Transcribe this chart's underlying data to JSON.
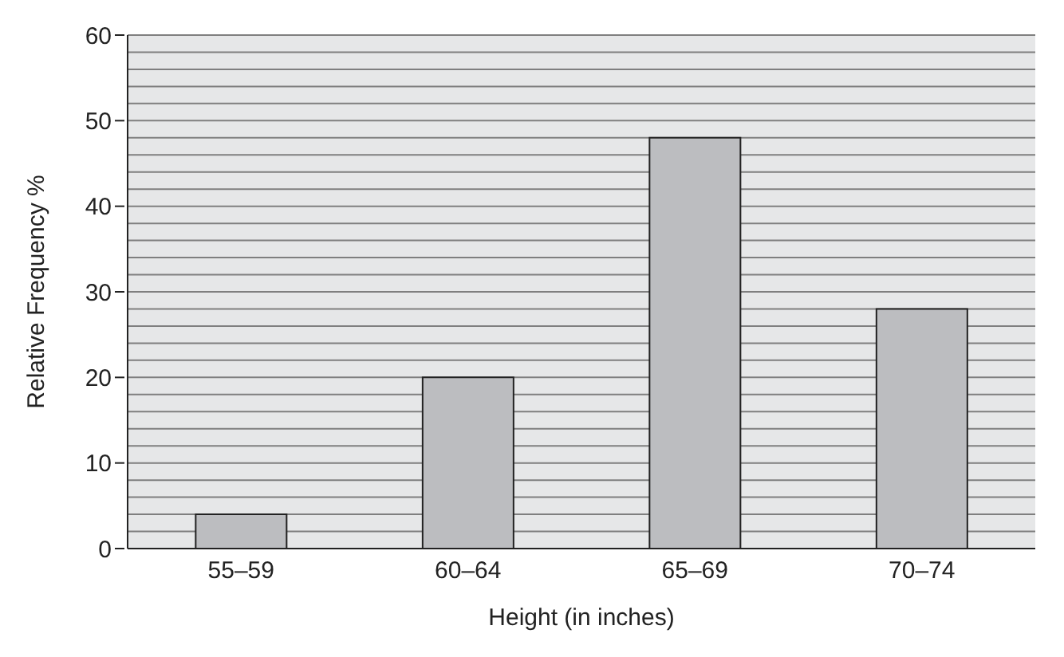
{
  "chart_data": {
    "type": "bar",
    "xlabel": "Height (in inches)",
    "ylabel": "Relative Frequency %",
    "categories": [
      "55–59",
      "60–64",
      "65–69",
      "70–74"
    ],
    "values": [
      4,
      20,
      48,
      28
    ],
    "color": "#bcbdc0",
    "ylim": [
      0,
      60
    ],
    "yticks": [
      0,
      {
        "value": 2,
        "label": null
      },
      {
        "value": 4,
        "label": null
      },
      {
        "value": 6,
        "label": null
      },
      {
        "value": 8,
        "label": null
      },
      10,
      {
        "value": 12,
        "label": null
      },
      {
        "value": 14,
        "label": null
      },
      {
        "value": 16,
        "label": null
      },
      {
        "value": 18,
        "label": null
      },
      20,
      {
        "value": 22,
        "label": null
      },
      {
        "value": 24,
        "label": null
      },
      {
        "value": 26,
        "label": null
      },
      {
        "value": 28,
        "label": null
      },
      30,
      {
        "value": 32,
        "label": null
      },
      {
        "value": 34,
        "label": null
      },
      {
        "value": 36,
        "label": null
      },
      {
        "value": 38,
        "label": null
      },
      40,
      {
        "value": 42,
        "label": null
      },
      {
        "value": 44,
        "label": null
      },
      {
        "value": 46,
        "label": null
      },
      {
        "value": 48,
        "label": null
      },
      50,
      {
        "value": 52,
        "label": null
      },
      {
        "value": 54,
        "label": null
      },
      {
        "value": 56,
        "label": null
      },
      {
        "value": 58,
        "label": null
      },
      60
    ],
    "grid": "y"
  }
}
